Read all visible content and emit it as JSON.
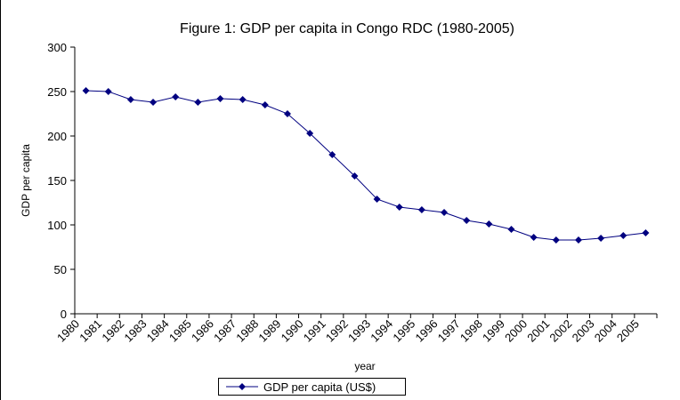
{
  "chart_data": {
    "type": "line",
    "title": "Figure 1: GDP per capita in Congo RDC (1980-2005)",
    "xlabel": "year",
    "ylabel": "GDP per capita",
    "ylim": [
      0,
      300
    ],
    "yticks": [
      "0",
      "50",
      "100",
      "150",
      "200",
      "250",
      "300"
    ],
    "categories": [
      "1980",
      "1981",
      "1982",
      "1983",
      "1984",
      "1985",
      "1986",
      "1987",
      "1988",
      "1989",
      "1990",
      "1991",
      "1992",
      "1993",
      "1994",
      "1995",
      "1996",
      "1997",
      "1998",
      "1999",
      "2000",
      "2001",
      "2002",
      "2003",
      "2004",
      "2005"
    ],
    "series": [
      {
        "name": "GDP per capita (US$)",
        "color": "#000080",
        "marker": "diamond",
        "values": [
          251,
          250,
          241,
          238,
          244,
          238,
          242,
          241,
          235,
          225,
          203,
          179,
          155,
          129,
          120,
          117,
          114,
          105,
          101,
          95,
          86,
          83,
          83,
          85,
          88,
          91
        ]
      }
    ],
    "grid": false,
    "legend_position": "bottom"
  }
}
